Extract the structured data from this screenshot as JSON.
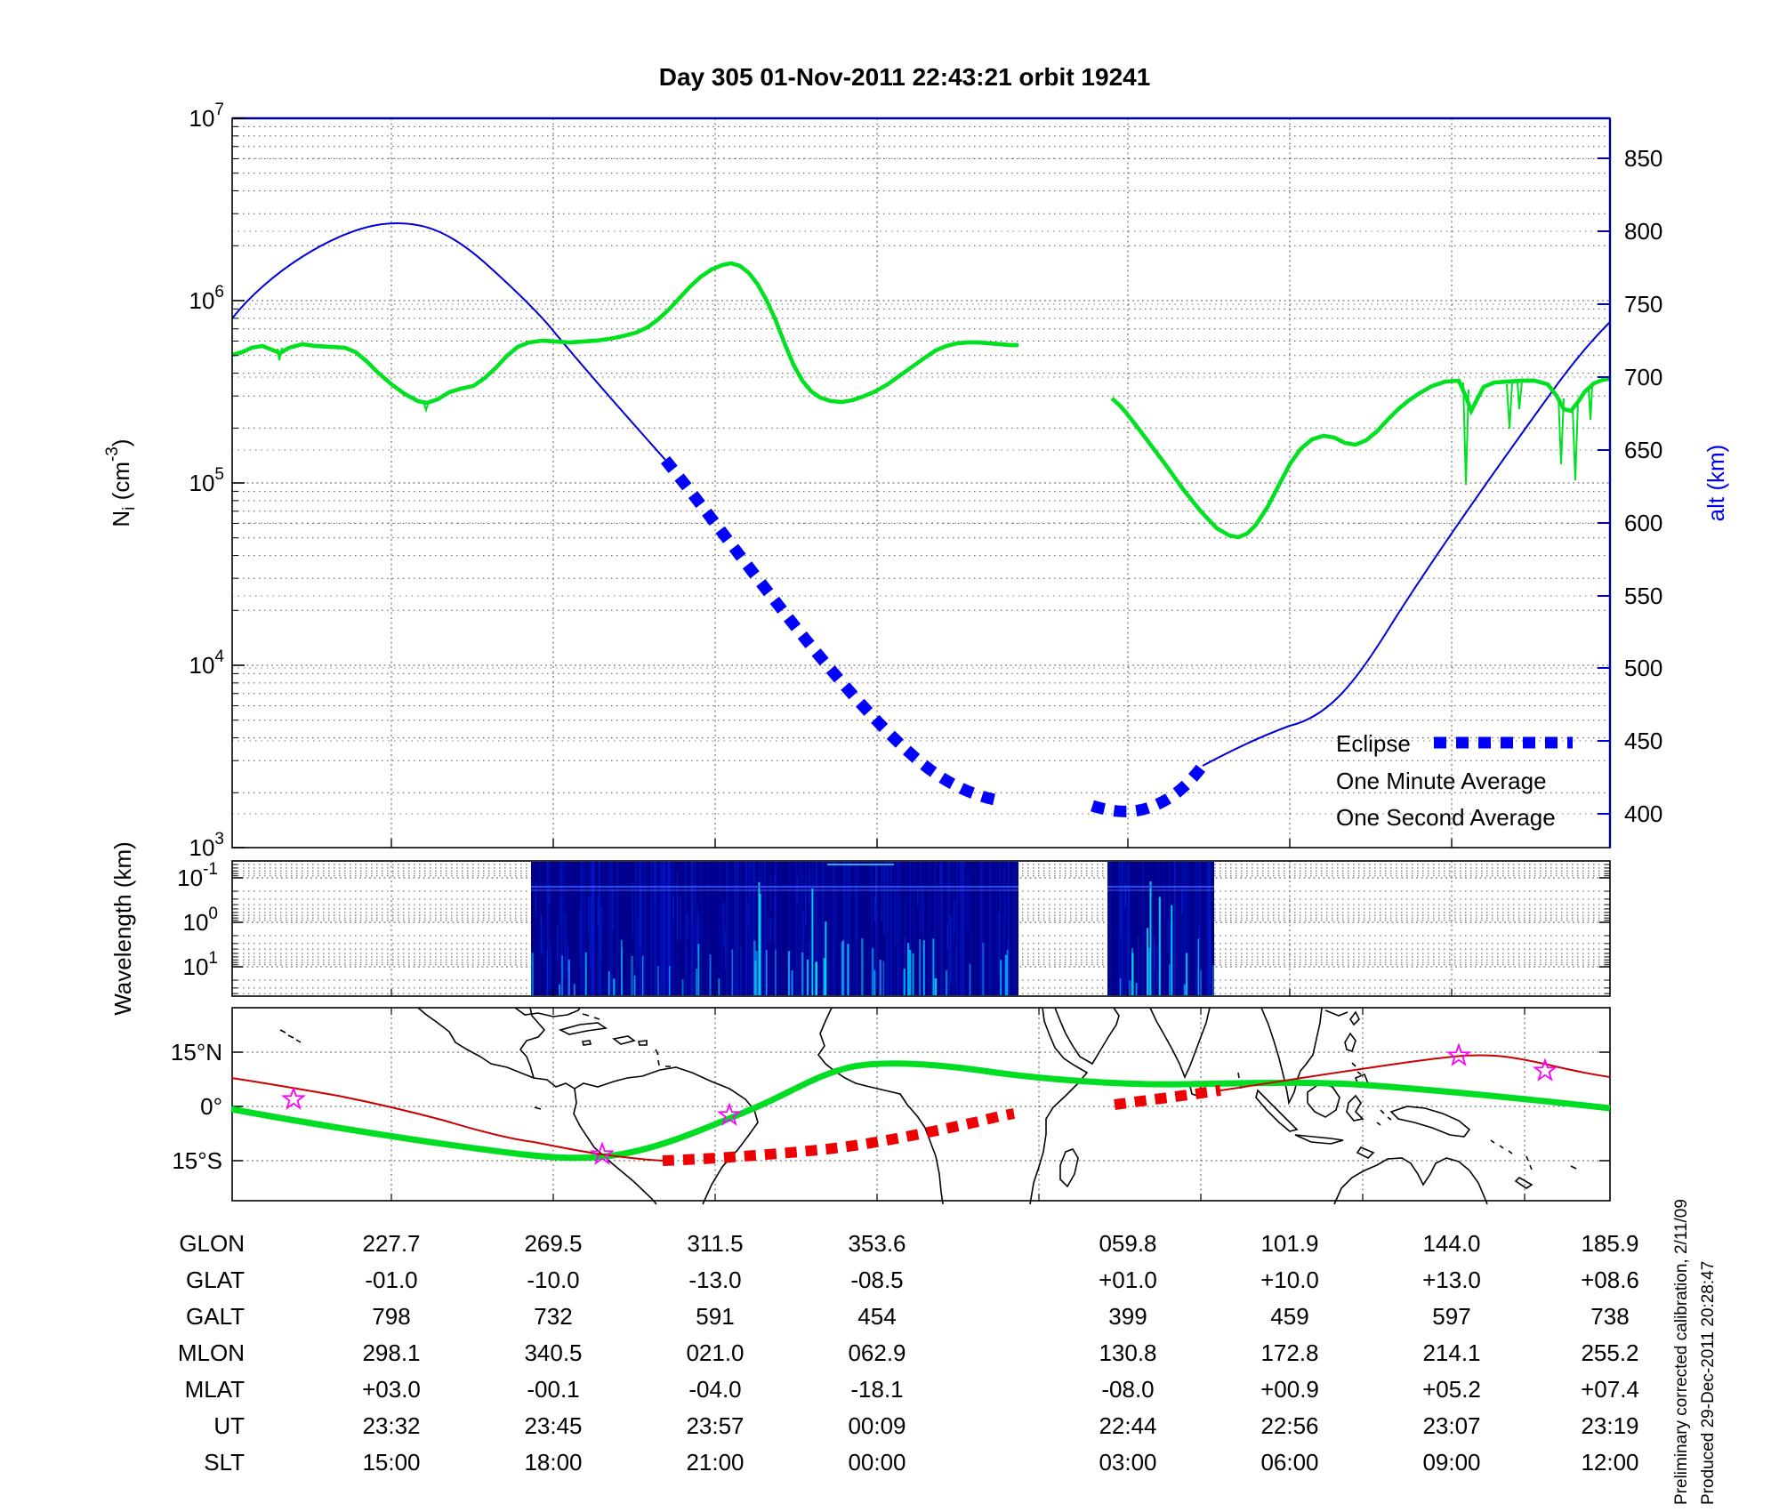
{
  "title": "Day 305  01-Nov-2011 22:43:21   orbit 19241",
  "main_plot": {
    "ylabel": {
      "pre": "N",
      "sub": "i",
      "mid": " (cm",
      "sup": "-3",
      "end": ")"
    },
    "yticks": [
      {
        "base": "10",
        "exp": "7"
      },
      {
        "base": "10",
        "exp": "6"
      },
      {
        "base": "10",
        "exp": "5"
      },
      {
        "base": "10",
        "exp": "4"
      },
      {
        "base": "10",
        "exp": "3"
      }
    ],
    "alt_axis_label": "alt (km)",
    "alt_ticks": [
      "850",
      "800",
      "750",
      "700",
      "650",
      "600",
      "550",
      "500",
      "450",
      "400"
    ],
    "legend": {
      "eclipse": "Eclipse",
      "one_minute": "One Minute Average",
      "one_second": "One Second Average"
    },
    "colors": {
      "altitude_curve": "#0000ee",
      "eclipse": "#0000ff",
      "one_minute": "#000000",
      "one_second": "#00e020",
      "axis_right": "#0000cc"
    }
  },
  "wavelength_panel": {
    "ylabel": "Wavelength (km)",
    "yticks": [
      {
        "base": "10",
        "exp": "-1"
      },
      {
        "base": "10",
        "exp": "0"
      },
      {
        "base": "10",
        "exp": "1"
      }
    ],
    "spectrogram_color": "#00008c"
  },
  "map_panel": {
    "lat_ticks": [
      "15°N",
      "0°",
      "15°S"
    ],
    "track_colors": {
      "magnetic_equator": "#00dd22",
      "orbit_track": "#cc0000",
      "orbit_eclipse": "#ee0000",
      "marker": "#ff00ff"
    }
  },
  "table": {
    "rows": [
      {
        "label": "GLON",
        "values": [
          "227.7",
          "269.5",
          "311.5",
          "353.6",
          "059.8",
          "101.9",
          "144.0",
          "185.9"
        ]
      },
      {
        "label": "GLAT",
        "values": [
          "-01.0",
          "-10.0",
          "-13.0",
          "-08.5",
          "+01.0",
          "+10.0",
          "+13.0",
          "+08.6"
        ]
      },
      {
        "label": "GALT",
        "values": [
          "798",
          "732",
          "591",
          "454",
          "399",
          "459",
          "597",
          "738"
        ]
      },
      {
        "label": "MLON",
        "values": [
          "298.1",
          "340.5",
          "021.0",
          "062.9",
          "130.8",
          "172.8",
          "214.1",
          "255.2"
        ]
      },
      {
        "label": "MLAT",
        "values": [
          "+03.0",
          "-00.1",
          "-04.0",
          "-18.1",
          "-08.0",
          "+00.9",
          "+05.2",
          "+07.4"
        ]
      },
      {
        "label": "UT",
        "values": [
          "23:32",
          "23:45",
          "23:57",
          "00:09",
          "22:44",
          "22:56",
          "23:07",
          "23:19"
        ]
      },
      {
        "label": "SLT",
        "values": [
          "15:00",
          "18:00",
          "21:00",
          "00:00",
          "03:00",
          "06:00",
          "09:00",
          "12:00"
        ]
      }
    ]
  },
  "footnotes": [
    "Preliminary corrected calibration, 2/11/09",
    "Produced 29-Dec-2011 20:28:47"
  ],
  "chart_data": [
    {
      "type": "line",
      "title": "Day 305  01-Nov-2011 22:43:21   orbit 19241",
      "xlabel": "UT (columns of bottom table)",
      "ylabel": "Ni (cm-3)",
      "ylim_log10": [
        3,
        7
      ],
      "y2label": "alt (km)",
      "y2lim": [
        390,
        860
      ],
      "grid": "dotted",
      "legend": [
        "Eclipse",
        "One Minute Average",
        "One Second Average"
      ],
      "legend_position": "lower right",
      "x_ut": [
        "23:32",
        "23:45",
        "23:57",
        "00:09",
        "22:44",
        "22:56",
        "23:07",
        "23:19"
      ],
      "series": [
        {
          "name": "altitude_km",
          "axis": "right",
          "color": "#0000ee",
          "values": [
            798,
            732,
            591,
            454,
            399,
            459,
            597,
            738
          ]
        },
        {
          "name": "Ni_one_minute_average_cm3_approx",
          "axis": "left",
          "color": "#000000",
          "values": [
            530000,
            590000,
            1500000,
            330000,
            230000,
            130000,
            360000,
            370000
          ]
        },
        {
          "name": "Ni_one_second_average_cm3",
          "axis": "left",
          "color": "#00e020",
          "values": [
            530000,
            590000,
            1500000,
            330000,
            230000,
            130000,
            360000,
            370000
          ]
        }
      ],
      "annotations": [
        "data gap between UT 00:09 and UT 22:44 columns",
        "thick dashed blue segments on altitude curve mark eclipse",
        "Ni one-minute peak ~1.6e6 cm-3 near 23:57; minimum ~5e4 cm-3 near 22:50"
      ]
    },
    {
      "type": "heatmap",
      "ylabel": "Wavelength (km)",
      "yticks_log": [
        0.1,
        1,
        10
      ],
      "y_axis_inverted": true,
      "description": "Plasma-wave spectrogram; dark-blue active intervals aligned with the two orbit segments, with bright cyan vertical streaks at long wavelengths; white (no data) elsewhere"
    },
    {
      "type": "map",
      "yticks": [
        "15N",
        "0",
        "15S"
      ],
      "lat_range_deg": [
        -27,
        27
      ],
      "tracks": [
        {
          "name": "magnetic_equator",
          "color": "green",
          "style": "thick solid"
        },
        {
          "name": "spacecraft_ground_track",
          "color": "red",
          "style": "thin solid, thick dashed while in eclipse"
        },
        {
          "name": "event_markers",
          "color": "magenta",
          "symbol": "open star",
          "count": 5
        }
      ]
    },
    {
      "type": "table",
      "rows": [
        "GLON",
        "GLAT",
        "GALT",
        "MLON",
        "MLAT",
        "UT",
        "SLT"
      ],
      "columns": 8
    }
  ]
}
